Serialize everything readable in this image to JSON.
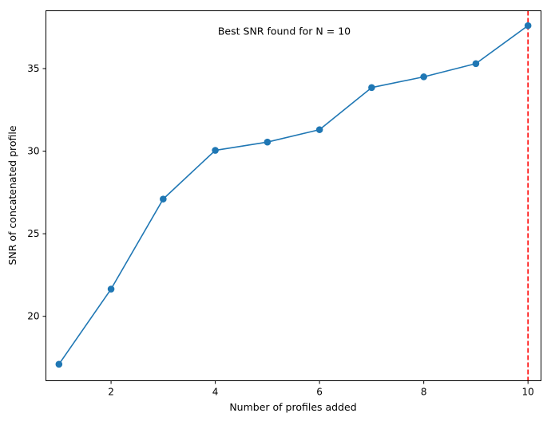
{
  "chart_data": {
    "type": "line",
    "title": "",
    "xlabel": "Number of profiles added",
    "ylabel": "SNR of concatenated profile",
    "xlim": [
      0.75,
      10.25
    ],
    "ylim": [
      16.1,
      38.5
    ],
    "xticks": [
      2,
      4,
      6,
      8,
      10
    ],
    "yticks": [
      20,
      25,
      30,
      35
    ],
    "grid": false,
    "series": [
      {
        "name": "",
        "color": "#1f77b4",
        "marker": "circle",
        "x": [
          1,
          2,
          3,
          4,
          5,
          6,
          7,
          8,
          9,
          10
        ],
        "y": [
          17.1,
          21.65,
          27.1,
          30.05,
          30.55,
          31.3,
          33.85,
          34.5,
          35.3,
          37.6
        ]
      }
    ],
    "vline": {
      "x": 10,
      "color": "#ff0000",
      "style": "dashed"
    },
    "annotation": {
      "text": "Best SNR found for N = 10",
      "x": 4.05,
      "y": 37.25
    }
  }
}
